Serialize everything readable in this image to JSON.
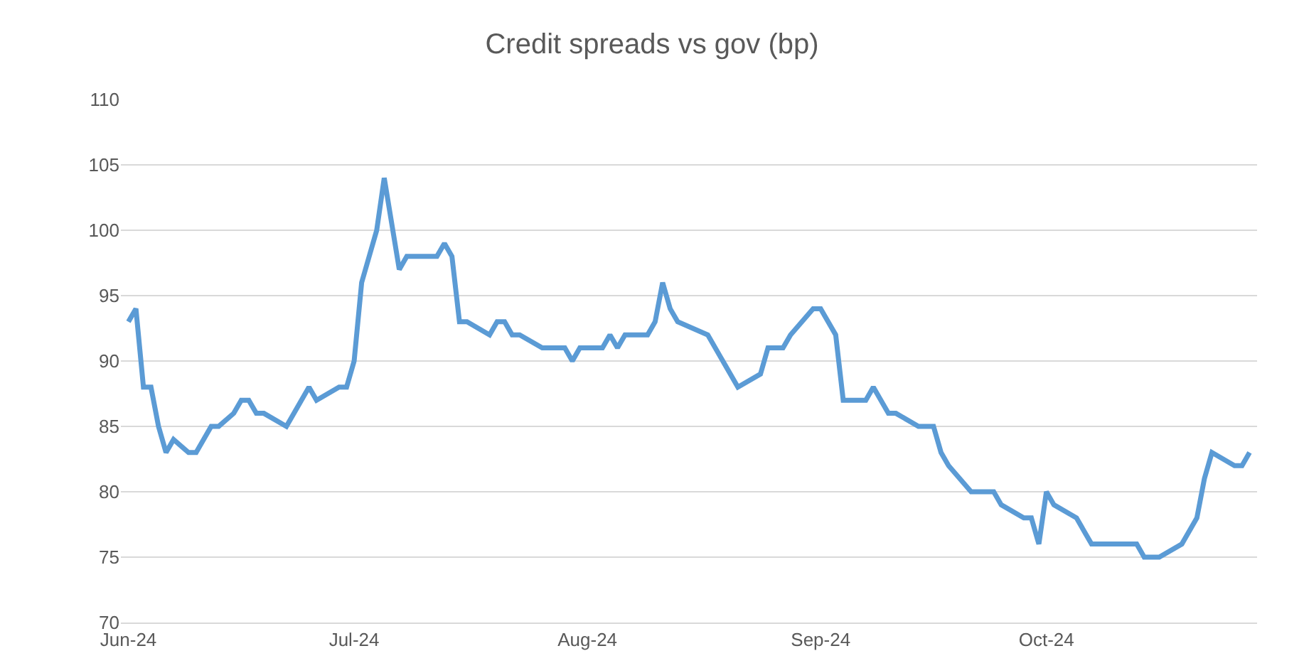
{
  "chart_data": {
    "type": "line",
    "title": "Credit spreads vs gov (bp)",
    "x": [
      "2024-06-01",
      "2024-06-02",
      "2024-06-03",
      "2024-06-04",
      "2024-06-05",
      "2024-06-06",
      "2024-06-07",
      "2024-06-09",
      "2024-06-10",
      "2024-06-12",
      "2024-06-13",
      "2024-06-15",
      "2024-06-16",
      "2024-06-17",
      "2024-06-18",
      "2024-06-19",
      "2024-06-22",
      "2024-06-25",
      "2024-06-26",
      "2024-06-29",
      "2024-06-30",
      "2024-07-01",
      "2024-07-02",
      "2024-07-04",
      "2024-07-05",
      "2024-07-07",
      "2024-07-08",
      "2024-07-12",
      "2024-07-13",
      "2024-07-14",
      "2024-07-15",
      "2024-07-16",
      "2024-07-19",
      "2024-07-20",
      "2024-07-21",
      "2024-07-22",
      "2024-07-23",
      "2024-07-26",
      "2024-07-29",
      "2024-07-30",
      "2024-07-31",
      "2024-08-03",
      "2024-08-04",
      "2024-08-05",
      "2024-08-06",
      "2024-08-09",
      "2024-08-10",
      "2024-08-11",
      "2024-08-12",
      "2024-08-13",
      "2024-08-17",
      "2024-08-19",
      "2024-08-21",
      "2024-08-24",
      "2024-08-25",
      "2024-08-27",
      "2024-08-28",
      "2024-08-31",
      "2024-09-01",
      "2024-09-03",
      "2024-09-04",
      "2024-09-07",
      "2024-09-08",
      "2024-09-10",
      "2024-09-11",
      "2024-09-14",
      "2024-09-16",
      "2024-09-17",
      "2024-09-18",
      "2024-09-21",
      "2024-09-24",
      "2024-09-25",
      "2024-09-28",
      "2024-09-29",
      "2024-09-30",
      "2024-10-01",
      "2024-10-02",
      "2024-10-05",
      "2024-10-07",
      "2024-10-13",
      "2024-10-14",
      "2024-10-16",
      "2024-10-19",
      "2024-10-21",
      "2024-10-22",
      "2024-10-23",
      "2024-10-26",
      "2024-10-27",
      "2024-10-28"
    ],
    "series": [
      {
        "color": "#5b9bd5",
        "values": [
          93,
          94,
          88,
          88,
          85,
          83,
          84,
          83,
          83,
          85,
          85,
          86,
          87,
          87,
          86,
          86,
          85,
          88,
          87,
          88,
          88,
          90,
          96,
          100,
          104,
          97,
          98,
          98,
          99,
          98,
          93,
          93,
          92,
          93,
          93,
          92,
          92,
          91,
          91,
          90,
          91,
          91,
          92,
          91,
          92,
          92,
          93,
          96,
          94,
          93,
          92,
          90,
          88,
          89,
          91,
          91,
          92,
          94,
          94,
          92,
          87,
          87,
          88,
          86,
          86,
          85,
          85,
          83,
          82,
          80,
          80,
          79,
          78,
          78,
          76,
          80,
          79,
          78,
          76,
          76,
          75,
          75,
          76,
          78,
          81,
          83,
          82,
          82,
          83
        ]
      }
    ],
    "xlim": [
      "2024-05-31",
      "2024-10-29"
    ],
    "xticks": [
      {
        "value": "2024-06-01",
        "label": "Jun-24"
      },
      {
        "value": "2024-07-01",
        "label": "Jul-24"
      },
      {
        "value": "2024-08-01",
        "label": "Aug-24"
      },
      {
        "value": "2024-09-01",
        "label": "Sep-24"
      },
      {
        "value": "2024-10-01",
        "label": "Oct-24"
      }
    ],
    "ylim": [
      70,
      110
    ],
    "yticks": [
      70,
      75,
      80,
      85,
      90,
      95,
      100,
      105,
      110
    ],
    "grid": "y",
    "marker": "none",
    "line_style": "solid"
  }
}
